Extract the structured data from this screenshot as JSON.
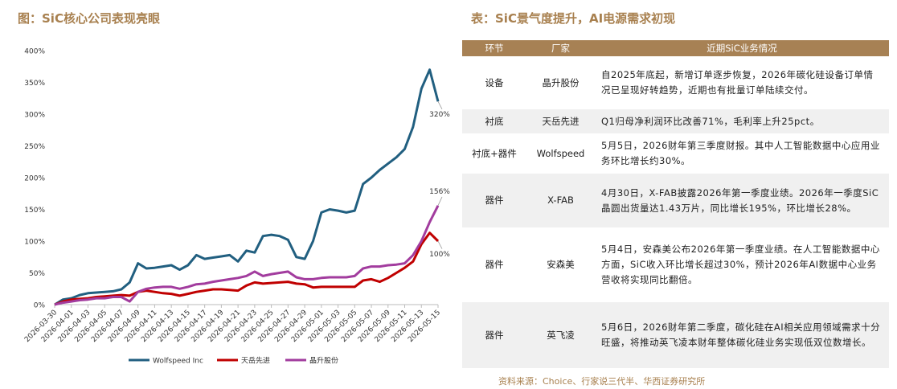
{
  "chart_data": {
    "type": "line",
    "title": "图：SiC核心公司表现亮眼",
    "categories": [
      "2026-03-30",
      null,
      "2026-04-01",
      null,
      "2026-04-03",
      null,
      "2026-04-05",
      null,
      "2026-04-07",
      null,
      "2026-04-09",
      null,
      "2026-04-11",
      null,
      "2026-04-13",
      null,
      "2026-04-15",
      null,
      "2026-04-17",
      null,
      "2026-04-19",
      null,
      "2026-04-21",
      null,
      "2026-04-23",
      null,
      "2026-04-25",
      null,
      "2026-04-27",
      null,
      "2026-04-29",
      null,
      "2026-05-01",
      null,
      "2026-05-03",
      null,
      "2026-05-05",
      null,
      "2026-05-07",
      null,
      "2026-05-09",
      null,
      "2026-05-11",
      null,
      "2026-05-13",
      null,
      "2026-05-15"
    ],
    "series": [
      {
        "name": "Wolfspeed Inc",
        "color": "#215f80",
        "end_label": "320%",
        "values": [
          0,
          8,
          10,
          15,
          18,
          19,
          20,
          21,
          24,
          35,
          65,
          57,
          58,
          60,
          62,
          55,
          62,
          78,
          72,
          74,
          76,
          78,
          68,
          85,
          82,
          108,
          110,
          108,
          102,
          75,
          72,
          100,
          145,
          150,
          148,
          145,
          148,
          190,
          200,
          212,
          222,
          232,
          245,
          280,
          340,
          370,
          320
        ]
      },
      {
        "name": "天岳先进",
        "color": "#c00000",
        "end_label": "100%",
        "values": [
          0,
          5,
          8,
          9,
          10,
          12,
          13,
          14,
          15,
          14,
          20,
          22,
          20,
          18,
          17,
          14,
          17,
          20,
          22,
          24,
          24,
          23,
          22,
          30,
          35,
          33,
          34,
          35,
          36,
          33,
          32,
          27,
          28,
          28,
          28,
          28,
          28,
          38,
          40,
          36,
          42,
          50,
          58,
          68,
          95,
          113,
          100
        ]
      },
      {
        "name": "晶升股份",
        "color": "#a23c9e",
        "end_label": "156%",
        "values": [
          0,
          3,
          5,
          7,
          8,
          10,
          10,
          12,
          12,
          5,
          20,
          25,
          27,
          28,
          28,
          25,
          28,
          32,
          33,
          36,
          38,
          40,
          42,
          45,
          52,
          45,
          48,
          50,
          52,
          43,
          40,
          40,
          42,
          43,
          43,
          43,
          45,
          57,
          60,
          60,
          62,
          63,
          65,
          78,
          100,
          130,
          156
        ]
      }
    ],
    "ylim": [
      0,
      400
    ],
    "yticks": [
      {
        "value": 0,
        "label": "0%"
      },
      {
        "value": 50,
        "label": "50%"
      },
      {
        "value": 100,
        "label": "100%"
      },
      {
        "value": 150,
        "label": "150%"
      },
      {
        "value": 200,
        "label": "200%"
      },
      {
        "value": 250,
        "label": "250%"
      },
      {
        "value": 300,
        "label": "300%"
      },
      {
        "value": 350,
        "label": "350%"
      },
      {
        "value": 400,
        "label": "400%"
      }
    ],
    "grid": false,
    "legend": "bottom"
  },
  "table": {
    "title": "表：SiC景气度提升，AI电源需求初现",
    "header": [
      "环节",
      "厂家",
      "近期SiC业务情况"
    ],
    "rows": [
      [
        "设备",
        "晶升股份",
        "自2025年底起，新增订单逐步恢复，2026年碳化硅设备订单情况已呈现好转趋势，近期也有批量订单陆续交付。"
      ],
      [
        "衬底",
        "天岳先进",
        "Q1归母净利润环比改善71%，毛利率上升25pct。"
      ],
      [
        "衬底+器件",
        "Wolfspeed",
        "5月5日，2026财年第三季度财报。其中人工智能数据中心应用业务环比增长约30%。"
      ],
      [
        "器件",
        "X-FAB",
        "4月30日，X-FAB披露2026年第一季度业绩。2026年一季度SiC晶圆出货量达1.43万片，同比增长195%，环比增长28%。"
      ],
      [
        "器件",
        "安森美",
        "5月4日，安森美公布2026年第一季度业绩。在人工智能数据中心方面，SiC收入环比增长超过30%，预计2026年AI数据中心业务营收将实现同比翻倍。"
      ],
      [
        "器件",
        "英飞凌",
        "5月6日，2026财年第二季度，碳化硅在AI相关应用领域需求十分旺盛，将推动英飞凌本财年整体碳化硅业务实现低双位数增长。"
      ]
    ]
  },
  "source": "资料来源：Choice、行家说三代半、华西证券研究所"
}
